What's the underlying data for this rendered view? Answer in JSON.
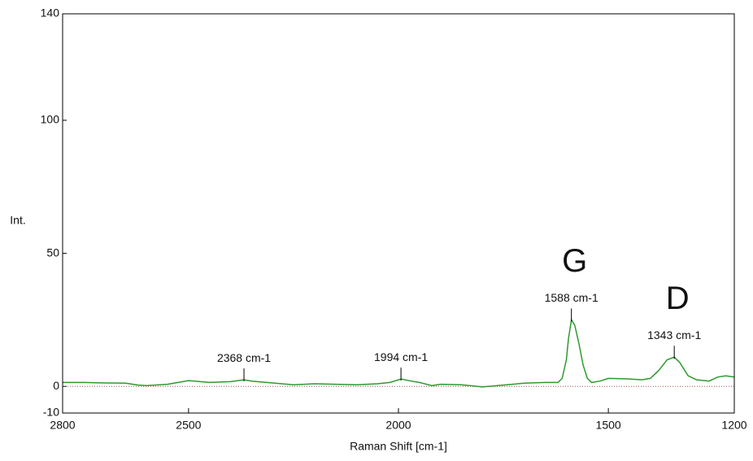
{
  "chart_data": {
    "type": "line",
    "xlabel": "Raman Shift [cm-1]",
    "ylabel": "Int.",
    "color": "#2e9a2e",
    "xlim": [
      2800,
      1200
    ],
    "xticks": [
      2800,
      2500,
      2000,
      1500,
      1200
    ],
    "ylim": [
      -10,
      140
    ],
    "yticks": [
      -10,
      0,
      50,
      100,
      140
    ],
    "baseline": 0,
    "x": [
      2800,
      2750,
      2700,
      2650,
      2620,
      2600,
      2550,
      2500,
      2450,
      2400,
      2368,
      2350,
      2300,
      2250,
      2200,
      2150,
      2100,
      2050,
      2020,
      1994,
      1970,
      1950,
      1920,
      1900,
      1850,
      1800,
      1750,
      1700,
      1650,
      1620,
      1610,
      1600,
      1595,
      1588,
      1580,
      1570,
      1560,
      1550,
      1540,
      1520,
      1500,
      1450,
      1420,
      1400,
      1380,
      1360,
      1343,
      1330,
      1310,
      1290,
      1260,
      1240,
      1220,
      1200
    ],
    "values": [
      1.5,
      1.5,
      1.3,
      1.2,
      0.5,
      0.3,
      0.8,
      2.2,
      1.5,
      1.8,
      2.5,
      2,
      1.3,
      0.6,
      1,
      0.8,
      0.6,
      1,
      1.5,
      2.8,
      2,
      1.5,
      0.3,
      0.8,
      0.6,
      -0.2,
      0.5,
      1.2,
      1.5,
      1.5,
      3,
      10,
      18,
      25,
      23,
      16,
      8,
      3,
      1.5,
      2,
      3,
      2.8,
      2.5,
      3,
      6,
      10,
      11,
      9,
      4,
      2.5,
      2,
      3.5,
      4,
      3.5
    ],
    "annotations": [
      {
        "text": "2368 cm-1",
        "x": 2368,
        "y": 2.5
      },
      {
        "text": "1994 cm-1",
        "x": 1994,
        "y": 2.8
      },
      {
        "text": "1588 cm-1",
        "x": 1588,
        "y": 25,
        "name": "G"
      },
      {
        "text": "1343 cm-1",
        "x": 1343,
        "y": 11,
        "name": "D"
      }
    ]
  }
}
